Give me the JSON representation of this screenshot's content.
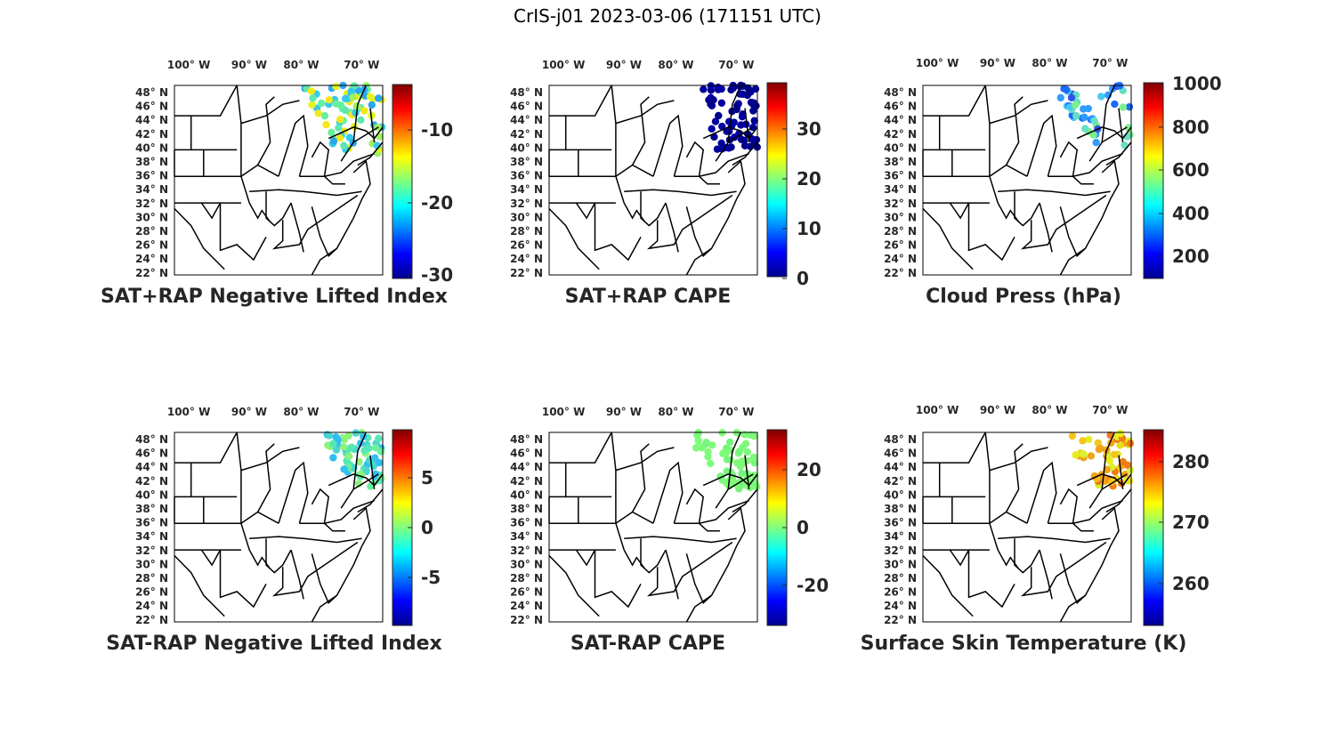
{
  "figure": {
    "title": "CrIS-j01 2023-03-06 (171151 UTC)"
  },
  "map": {
    "lon_labels": [
      "100° W",
      "90° W",
      "80° W",
      "70° W"
    ],
    "lat_labels": [
      "48° N",
      "46° N",
      "44° N",
      "42° N",
      "40° N",
      "38° N",
      "36° N",
      "34° N",
      "32° N",
      "30° N",
      "28° N",
      "26° N",
      "24° N",
      "22° N"
    ]
  },
  "colormap": "jet",
  "panels": [
    {
      "title": "SAT+RAP Negative Lifted Index",
      "colorbar": {
        "ticks": [
          "-10",
          "-20",
          "-30"
        ]
      },
      "swath": "west-edge",
      "palette": [
        "#9ef060",
        "#e4f41a",
        "#f4e81a",
        "#5ee8b0",
        "#35c8ea",
        "#2aa8ee",
        "#66f09c"
      ]
    },
    {
      "title": "SAT+RAP CAPE",
      "colorbar": {
        "ticks": [
          "30",
          "20",
          "10",
          "0"
        ]
      },
      "swath": "wide",
      "palette": [
        "#00008f",
        "#00009a",
        "#000089",
        "#0000a4"
      ]
    },
    {
      "title": "Cloud Press (hPa)",
      "colorbar": {
        "ticks": [
          "1000",
          "800",
          "600",
          "400",
          "200"
        ]
      },
      "swath": "cloud",
      "palette": [
        "#1a6cff",
        "#2f9cff",
        "#48c8f0",
        "#7cf08a",
        "#2f55e8",
        "#65e0c0"
      ]
    },
    {
      "title": "SAT-RAP Negative Lifted Index",
      "colorbar": {
        "ticks": [
          "5",
          "0",
          "-5"
        ]
      },
      "swath": "east",
      "palette": [
        "#55e8b6",
        "#6af09e",
        "#48d6d0",
        "#30bff0",
        "#8ef27c"
      ]
    },
    {
      "title": "SAT-RAP CAPE",
      "colorbar": {
        "ticks": [
          "20",
          "0",
          "-20"
        ]
      },
      "swath": "east",
      "palette": [
        "#7cfc7a",
        "#82f878",
        "#76f47e"
      ]
    },
    {
      "title": "Surface Skin Temperature (K)",
      "colorbar": {
        "ticks": [
          "280",
          "270",
          "260"
        ]
      },
      "swath": "east",
      "palette": [
        "#f4c41c",
        "#f0a41a",
        "#ecdc20",
        "#f07c16",
        "#e8ec22",
        "#d8f032"
      ]
    }
  ]
}
